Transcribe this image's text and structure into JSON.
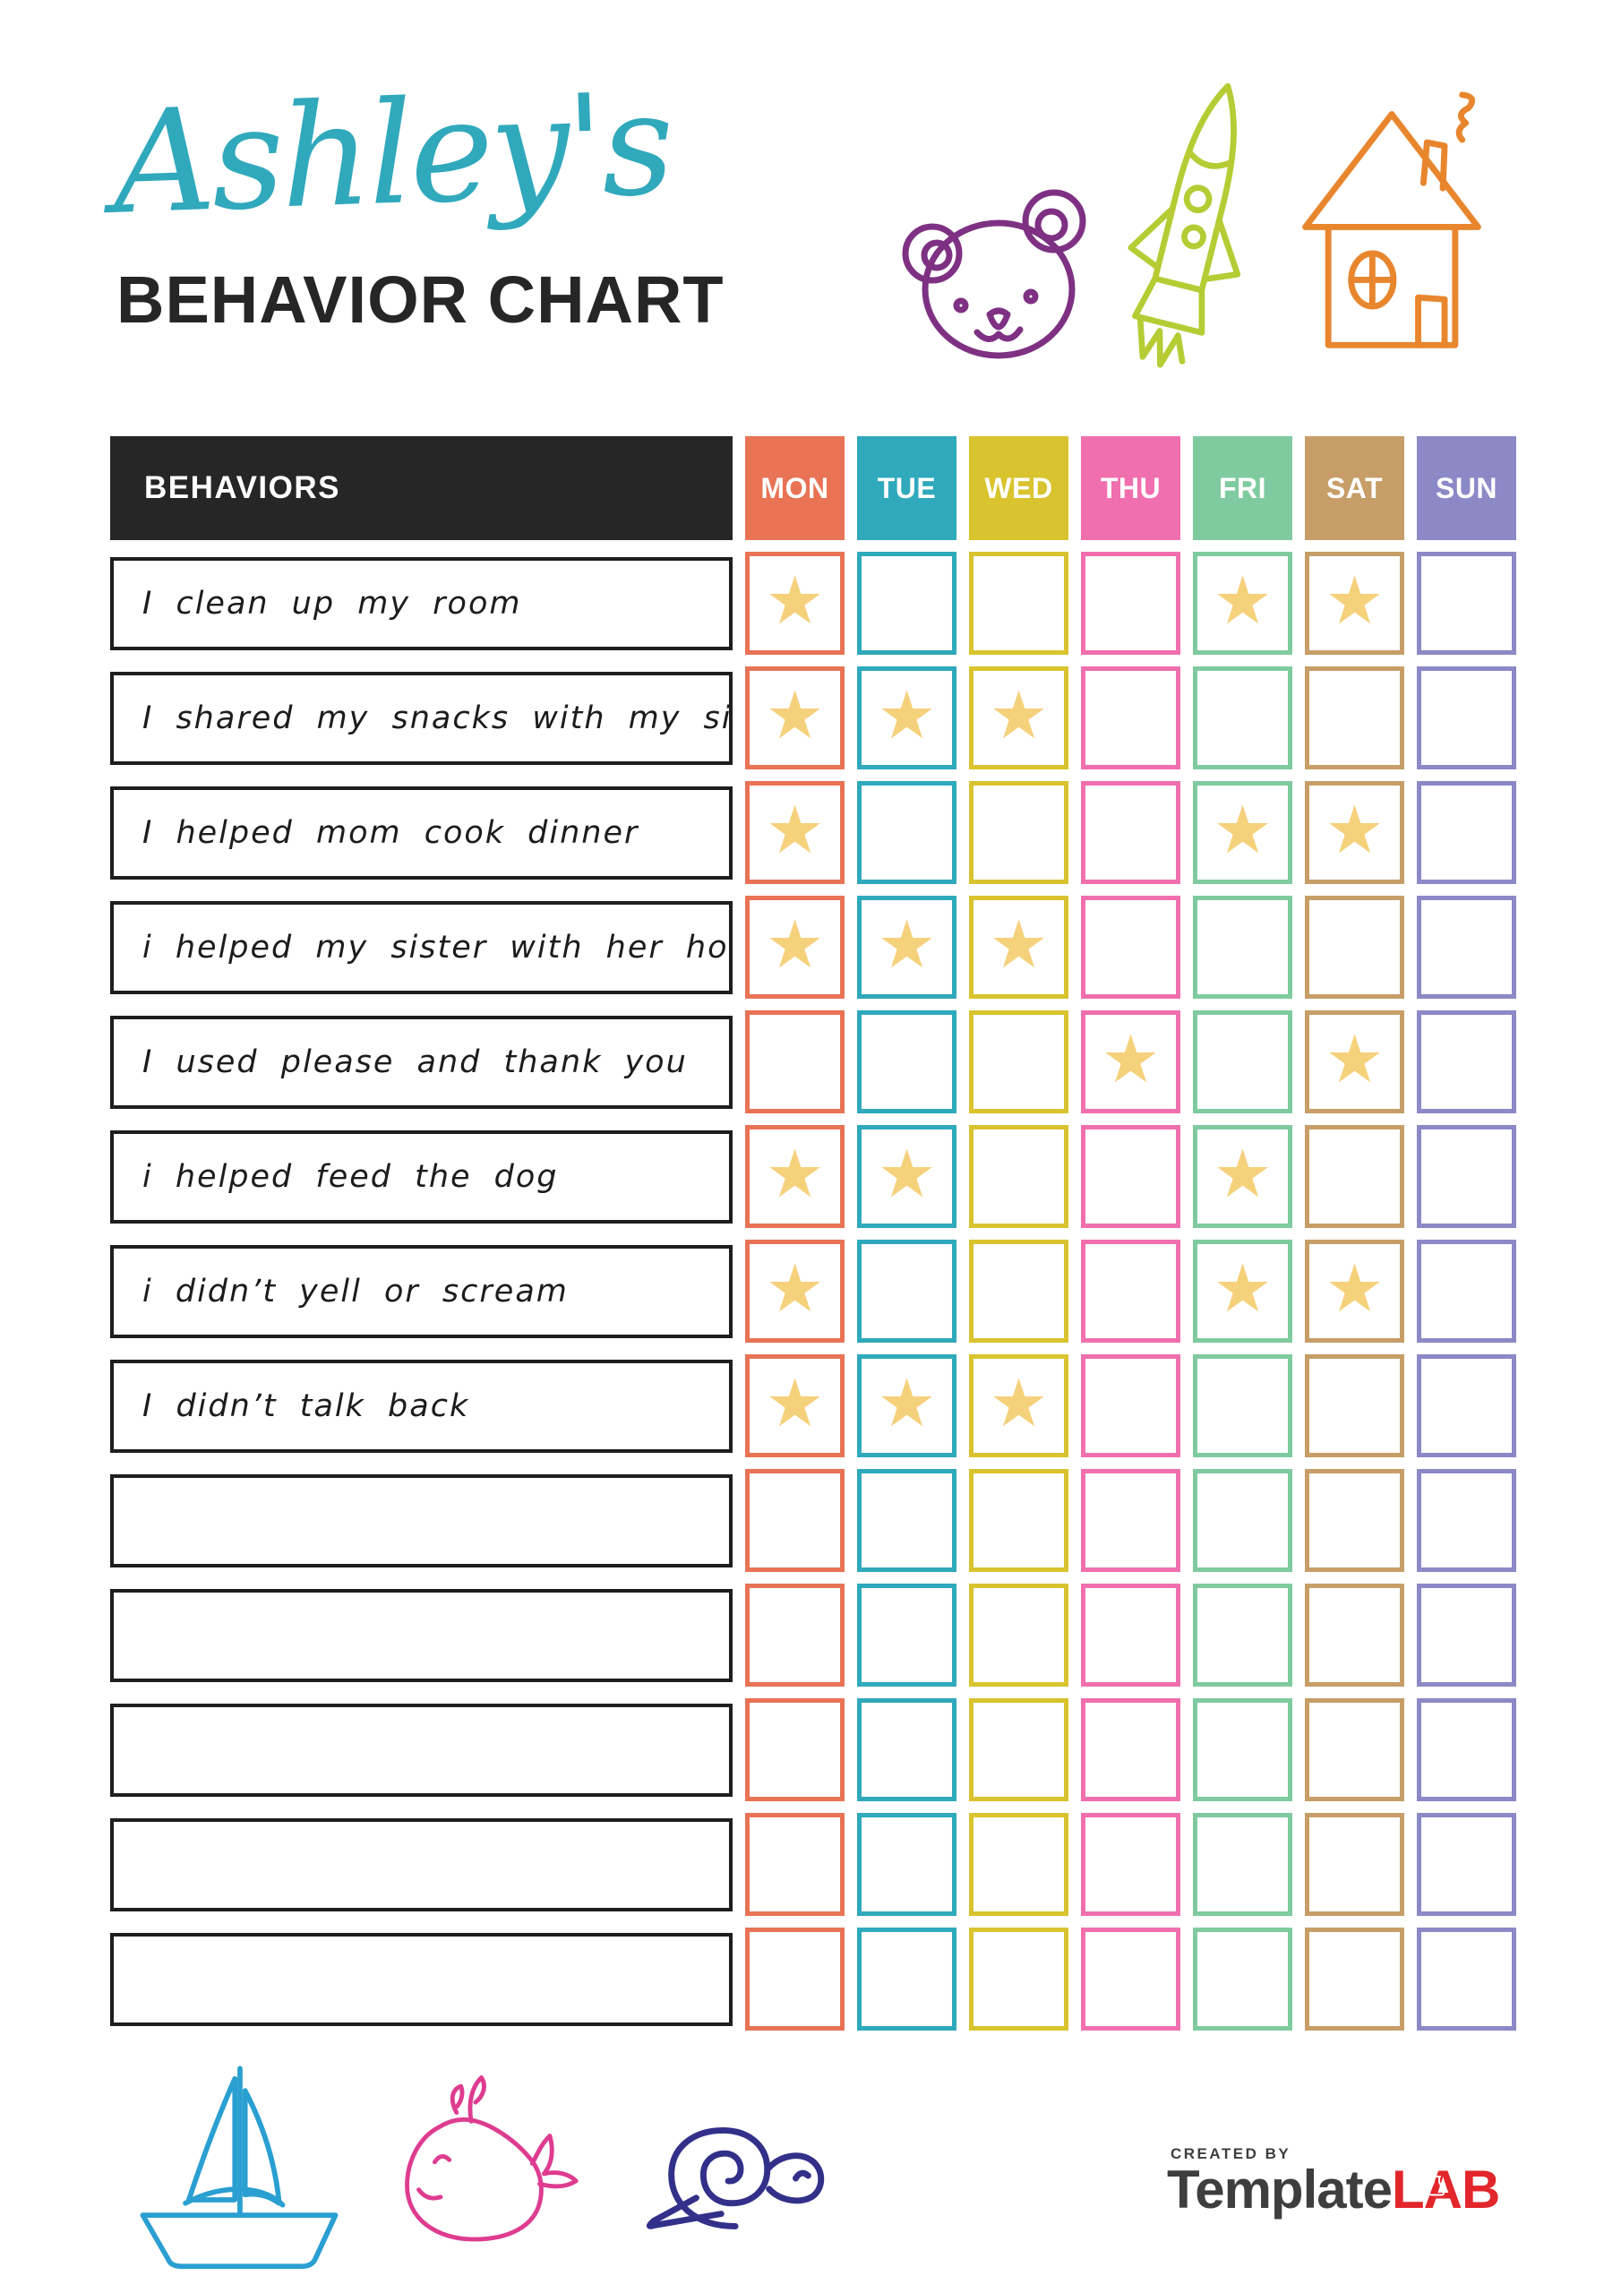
{
  "title": {
    "name": "Ashley's",
    "heading": "BEHAVIOR CHART",
    "name_color": "#31A9BC",
    "heading_color": "#262626"
  },
  "top_doodles": [
    "bear-doodle",
    "rocket-doodle",
    "house-doodle"
  ],
  "bottom_doodles": [
    "sailboat-doodle",
    "whale-doodle",
    "snail-doodle"
  ],
  "doodle_colors": {
    "bear": "#7E3183",
    "rocket": "#B5CC34",
    "house": "#E8862E",
    "sailboat": "#2A9FD1",
    "whale": "#DE3C90",
    "snail": "#33308A"
  },
  "table": {
    "behaviors_header": "BEHAVIORS",
    "header_bg": "#262626",
    "header_text_color": "#ffffff",
    "star_symbol": "★",
    "star_color": "#F6D17C",
    "row_border_color": "#1E1E1E",
    "days": [
      {
        "label": "MON",
        "color": "#E87355"
      },
      {
        "label": "TUE",
        "color": "#2FA9BB"
      },
      {
        "label": "WED",
        "color": "#D9C32E"
      },
      {
        "label": "THU",
        "color": "#F06FAE"
      },
      {
        "label": "FRI",
        "color": "#7FCB9F"
      },
      {
        "label": "SAT",
        "color": "#C79E67"
      },
      {
        "label": "SUN",
        "color": "#8B89C6"
      }
    ],
    "rows": [
      {
        "behavior": "I clean up my room",
        "stars": [
          "MON",
          "FRI",
          "SAT"
        ]
      },
      {
        "behavior": "I shared my snacks with my sister",
        "stars": [
          "MON",
          "TUE",
          "WED"
        ]
      },
      {
        "behavior": "I helped mom cook dinner",
        "stars": [
          "MON",
          "FRI",
          "SAT"
        ]
      },
      {
        "behavior": "i helped my sister with her homework",
        "stars": [
          "MON",
          "TUE",
          "WED"
        ]
      },
      {
        "behavior": "I used please and thank you",
        "stars": [
          "THU",
          "SAT"
        ]
      },
      {
        "behavior": "i helped feed the dog",
        "stars": [
          "MON",
          "TUE",
          "FRI"
        ]
      },
      {
        "behavior": "i didn’t yell or scream",
        "stars": [
          "MON",
          "FRI",
          "SAT"
        ]
      },
      {
        "behavior": "I didn’t talk back",
        "stars": [
          "MON",
          "TUE",
          "WED"
        ]
      },
      {
        "behavior": "",
        "stars": []
      },
      {
        "behavior": "",
        "stars": []
      },
      {
        "behavior": "",
        "stars": []
      },
      {
        "behavior": "",
        "stars": []
      },
      {
        "behavior": "",
        "stars": []
      }
    ]
  },
  "footer": {
    "created_by": "CREATED BY",
    "brand_name": "Template",
    "brand_suffix": "LAB",
    "brand_color": "#3E3E3E",
    "brand_suffix_color": "#E2262B"
  }
}
